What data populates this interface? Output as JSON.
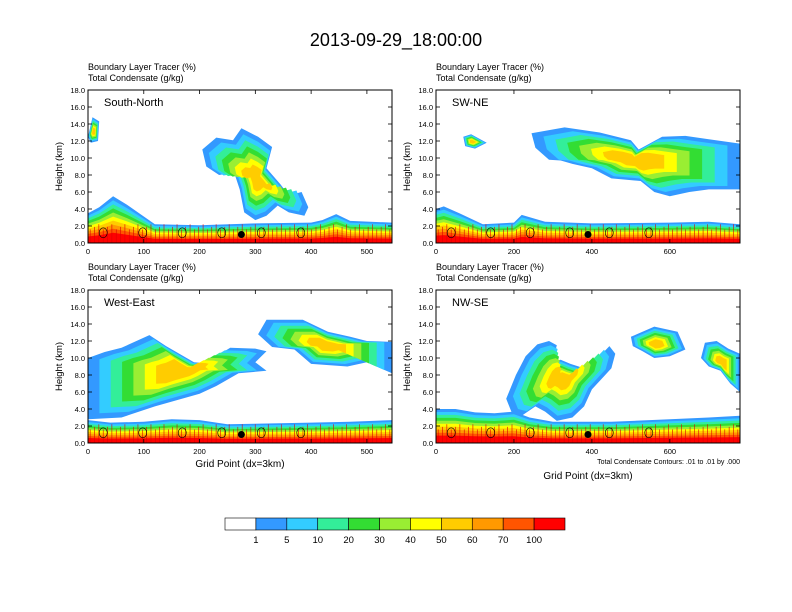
{
  "main_title": "2013-09-29_18:00:00",
  "colors": {
    "bins": [
      "#ffffff",
      "#3399ff",
      "#33ccff",
      "#33ee99",
      "#33dd33",
      "#99ee33",
      "#ffff00",
      "#ffcc00",
      "#ff9900",
      "#ff5500",
      "#ff0000"
    ],
    "contour": "#000000",
    "marker": "#000000"
  },
  "colorbar": {
    "labels": [
      "1",
      "5",
      "10",
      "20",
      "30",
      "40",
      "50",
      "60",
      "70",
      "100"
    ]
  },
  "chart_data": [
    {
      "type": "heatmap",
      "subtitle_line1": "Boundary Layer Tracer   (%)",
      "subtitle_line2": "Total Condensate   (g/kg)",
      "panel_label": "South-North",
      "ylabel": "Height (km)",
      "xlabel": "",
      "xlim": [
        0,
        545
      ],
      "ylim": [
        0,
        18
      ],
      "xticks": [
        "0",
        "100",
        "200",
        "300",
        "400",
        "500"
      ],
      "yticks": [
        "0.0",
        "2.0",
        "4.0",
        "6.0",
        "8.0",
        "10.0",
        "12.0",
        "14.0",
        "16.0",
        "18.0"
      ],
      "point_marker": [
        275,
        1.0
      ],
      "footnote": "",
      "clouds": [
        [
          [
            0,
            0
          ],
          [
            545,
            0
          ],
          [
            545,
            2.4
          ],
          [
            470,
            2.6
          ],
          [
            445,
            3.4
          ],
          [
            420,
            2.7
          ],
          [
            400,
            2.4
          ],
          [
            300,
            2.3
          ],
          [
            200,
            2.1
          ],
          [
            120,
            2.2
          ],
          [
            70,
            4.5
          ],
          [
            45,
            5.5
          ],
          [
            20,
            4.2
          ],
          [
            0,
            3.5
          ]
        ],
        [
          [
            0,
            12.5
          ],
          [
            8,
            14.8
          ],
          [
            20,
            14.3
          ],
          [
            18,
            12.0
          ],
          [
            5,
            11.8
          ]
        ],
        [
          [
            205,
            11.0
          ],
          [
            230,
            12.4
          ],
          [
            260,
            12.1
          ],
          [
            275,
            13.5
          ],
          [
            305,
            12.5
          ],
          [
            330,
            11.3
          ],
          [
            320,
            8.8
          ],
          [
            345,
            6.9
          ],
          [
            360,
            5.6
          ],
          [
            383,
            6.0
          ],
          [
            395,
            4.2
          ],
          [
            388,
            3.2
          ],
          [
            360,
            3.6
          ],
          [
            340,
            4.4
          ],
          [
            320,
            3.2
          ],
          [
            300,
            2.7
          ],
          [
            280,
            3.6
          ],
          [
            272,
            6.3
          ],
          [
            262,
            8.3
          ],
          [
            235,
            8.0
          ],
          [
            212,
            9.0
          ]
        ]
      ]
    },
    {
      "type": "heatmap",
      "subtitle_line1": "Boundary Layer Tracer   (%)",
      "subtitle_line2": "Total Condensate   (g/kg)",
      "panel_label": "SW-NE",
      "ylabel": "Height (km)",
      "xlabel": "",
      "xlim": [
        0,
        780
      ],
      "ylim": [
        0,
        18
      ],
      "xticks": [
        "0",
        "200",
        "400",
        "600"
      ],
      "yticks": [
        "0.0",
        "2.0",
        "4.0",
        "6.0",
        "8.0",
        "10.0",
        "12.0",
        "14.0",
        "16.0",
        "18.0"
      ],
      "point_marker": [
        390,
        1.0
      ],
      "footnote": "",
      "clouds": [
        [
          [
            0,
            0
          ],
          [
            780,
            0
          ],
          [
            780,
            2.2
          ],
          [
            700,
            2.5
          ],
          [
            600,
            2.4
          ],
          [
            400,
            2.3
          ],
          [
            280,
            2.5
          ],
          [
            220,
            3.3
          ],
          [
            200,
            2.4
          ],
          [
            120,
            2.2
          ],
          [
            60,
            3.5
          ],
          [
            20,
            4.3
          ],
          [
            0,
            4.0
          ]
        ],
        [
          [
            245,
            12.9
          ],
          [
            330,
            13.6
          ],
          [
            420,
            13.0
          ],
          [
            500,
            12.1
          ],
          [
            520,
            11.0
          ],
          [
            580,
            12.5
          ],
          [
            640,
            12.6
          ],
          [
            700,
            12.2
          ],
          [
            780,
            11.7
          ],
          [
            780,
            6.3
          ],
          [
            700,
            6.3
          ],
          [
            650,
            6.0
          ],
          [
            600,
            5.5
          ],
          [
            560,
            6.0
          ],
          [
            525,
            7.3
          ],
          [
            450,
            7.6
          ],
          [
            400,
            8.8
          ],
          [
            350,
            9.3
          ],
          [
            320,
            9.7
          ],
          [
            290,
            9.8
          ],
          [
            255,
            11.2
          ]
        ],
        [
          [
            70,
            12.5
          ],
          [
            90,
            12.8
          ],
          [
            130,
            11.8
          ],
          [
            100,
            11.1
          ],
          [
            75,
            11.4
          ]
        ]
      ]
    },
    {
      "type": "heatmap",
      "subtitle_line1": "Boundary Layer Tracer   (%)",
      "subtitle_line2": "Total Condensate   (g/kg)",
      "panel_label": "West-East",
      "ylabel": "Height (km)",
      "xlabel": "Grid Point (dx=3km)",
      "xlim": [
        0,
        545
      ],
      "ylim": [
        0,
        18
      ],
      "xticks": [
        "0",
        "100",
        "200",
        "300",
        "400",
        "500"
      ],
      "yticks": [
        "0.0",
        "2.0",
        "4.0",
        "6.0",
        "8.0",
        "10.0",
        "12.0",
        "14.0",
        "16.0",
        "18.0"
      ],
      "point_marker": [
        275,
        1.0
      ],
      "footnote": "",
      "clouds": [
        [
          [
            0,
            0
          ],
          [
            545,
            0
          ],
          [
            545,
            2.7
          ],
          [
            470,
            2.5
          ],
          [
            400,
            2.4
          ],
          [
            250,
            2.2
          ],
          [
            200,
            2.7
          ],
          [
            150,
            2.8
          ],
          [
            100,
            2.5
          ],
          [
            40,
            2.4
          ],
          [
            0,
            2.7
          ]
        ],
        [
          [
            0,
            10.0
          ],
          [
            30,
            10.7
          ],
          [
            60,
            11.2
          ],
          [
            110,
            12.7
          ],
          [
            140,
            11.4
          ],
          [
            190,
            9.5
          ],
          [
            210,
            9.4
          ],
          [
            255,
            11.2
          ],
          [
            300,
            11.1
          ],
          [
            320,
            10.8
          ],
          [
            300,
            9.5
          ],
          [
            320,
            8.5
          ],
          [
            270,
            8.2
          ],
          [
            230,
            6.7
          ],
          [
            200,
            5.8
          ],
          [
            120,
            4.3
          ],
          [
            60,
            3.0
          ],
          [
            0,
            2.8
          ]
        ],
        [
          [
            305,
            12.8
          ],
          [
            320,
            14.5
          ],
          [
            385,
            14.5
          ],
          [
            430,
            13.1
          ],
          [
            470,
            12.5
          ],
          [
            500,
            12.0
          ],
          [
            545,
            11.9
          ],
          [
            545,
            8.2
          ],
          [
            500,
            9.5
          ],
          [
            465,
            9.0
          ],
          [
            400,
            9.3
          ],
          [
            370,
            11.0
          ],
          [
            330,
            11.3
          ]
        ]
      ]
    },
    {
      "type": "heatmap",
      "subtitle_line1": "Boundary Layer Tracer   (%)",
      "subtitle_line2": "Total Condensate   (g/kg)",
      "panel_label": "NW-SE",
      "ylabel": "Height (km)",
      "xlabel": "Grid Point (dx=3km)",
      "xlim": [
        0,
        780
      ],
      "ylim": [
        0,
        18
      ],
      "xticks": [
        "0",
        "200",
        "400",
        "600"
      ],
      "yticks": [
        "0.0",
        "2.0",
        "4.0",
        "6.0",
        "8.0",
        "10.0",
        "12.0",
        "14.0",
        "16.0",
        "18.0"
      ],
      "point_marker": [
        390,
        1.0
      ],
      "footnote": "Total Condensate Contours: .01 to .01 by .000",
      "clouds": [
        [
          [
            0,
            0
          ],
          [
            780,
            0
          ],
          [
            780,
            3.2
          ],
          [
            700,
            3.0
          ],
          [
            600,
            2.8
          ],
          [
            450,
            2.5
          ],
          [
            300,
            2.5
          ],
          [
            240,
            3.0
          ],
          [
            200,
            3.7
          ],
          [
            150,
            3.5
          ],
          [
            100,
            3.6
          ],
          [
            50,
            4.0
          ],
          [
            0,
            4.0
          ]
        ],
        [
          [
            180,
            5.2
          ],
          [
            205,
            8.0
          ],
          [
            230,
            10.2
          ],
          [
            260,
            11.6
          ],
          [
            290,
            12.0
          ],
          [
            310,
            11.5
          ],
          [
            300,
            9.6
          ],
          [
            320,
            9.8
          ],
          [
            345,
            9.3
          ],
          [
            380,
            8.8
          ],
          [
            410,
            9.6
          ],
          [
            420,
            10.2
          ],
          [
            445,
            11.4
          ],
          [
            460,
            10.5
          ],
          [
            450,
            8.8
          ],
          [
            430,
            7.8
          ],
          [
            400,
            6.3
          ],
          [
            380,
            4.3
          ],
          [
            350,
            3.0
          ],
          [
            310,
            2.6
          ],
          [
            280,
            3.7
          ],
          [
            255,
            4.3
          ],
          [
            220,
            3.2
          ],
          [
            195,
            3.5
          ]
        ],
        [
          [
            500,
            12.5
          ],
          [
            560,
            13.7
          ],
          [
            620,
            13.1
          ],
          [
            640,
            11.0
          ],
          [
            600,
            10.2
          ],
          [
            560,
            10.0
          ],
          [
            530,
            10.8
          ],
          [
            505,
            11.4
          ]
        ],
        [
          [
            690,
            11.8
          ],
          [
            720,
            12.0
          ],
          [
            750,
            11.1
          ],
          [
            780,
            10.5
          ],
          [
            780,
            6.0
          ],
          [
            755,
            7.0
          ],
          [
            730,
            8.5
          ],
          [
            700,
            9.0
          ],
          [
            680,
            10.0
          ]
        ]
      ]
    }
  ]
}
